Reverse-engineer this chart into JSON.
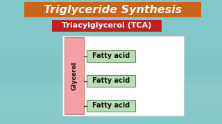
{
  "title": "Triglyceride Synthesis",
  "title_bg_color": "#C8651A",
  "title_text_color": "#FFFFFF",
  "subtitle": "Triacylglycerol (TCA)",
  "subtitle_bg_color": "#C02020",
  "subtitle_text_color": "#FFFFFF",
  "bg_color": "#7EC5C5",
  "glycerol_label": "Glycerol",
  "glycerol_box_color": "#F4A0A0",
  "glycerol_box_edge": "#CC7777",
  "fatty_acid_label": "Fatty acid",
  "fatty_acid_box_color": "#BBDDB8",
  "fatty_acid_box_edge": "#5C8F5C",
  "fatty_acid_text_color": "#111111",
  "glycerol_text_color": "#111111",
  "diagram_bg": "#FFFFFF",
  "diagram_border": "#CCCCCC",
  "figsize": [
    3.2,
    1.8
  ],
  "dpi": 100
}
